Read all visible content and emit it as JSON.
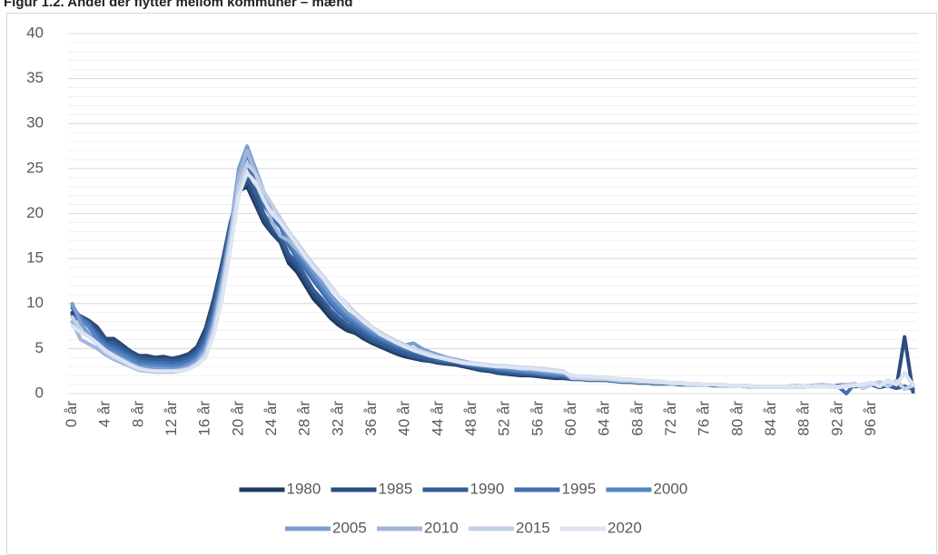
{
  "chart_data": {
    "type": "line",
    "title": "Figur 1.2. Andel der flytter mellom kommuner – mænd",
    "categories": [
      "0 år",
      null,
      null,
      null,
      "4 år",
      null,
      null,
      null,
      "8 år",
      null,
      null,
      null,
      "12 år",
      null,
      null,
      null,
      "16 år",
      null,
      null,
      null,
      "20 år",
      null,
      null,
      null,
      "24 år",
      null,
      null,
      null,
      "28 år",
      null,
      null,
      null,
      "32 år",
      null,
      null,
      null,
      "36 år",
      null,
      null,
      null,
      "40 år",
      null,
      null,
      null,
      "44 år",
      null,
      null,
      null,
      "48 år",
      null,
      null,
      null,
      "52 år",
      null,
      null,
      null,
      "56 år",
      null,
      null,
      null,
      "60 år",
      null,
      null,
      null,
      "64 år",
      null,
      null,
      null,
      "68 år",
      null,
      null,
      null,
      "72 år",
      null,
      null,
      null,
      "76 år",
      null,
      null,
      null,
      "80 år",
      null,
      null,
      null,
      "84 år",
      null,
      null,
      null,
      "88 år",
      null,
      null,
      null,
      "92 år",
      null,
      null,
      null,
      "96 år",
      null,
      null,
      null,
      null,
      null
    ],
    "ylim": [
      0,
      40
    ],
    "yticks": [
      0,
      5,
      10,
      15,
      20,
      25,
      30,
      35,
      40
    ],
    "grid": true,
    "minor_grid_step": 1,
    "legend": "bottom",
    "series": [
      {
        "name": "1980",
        "color": "#1f3a5f",
        "values": [
          9,
          8.6,
          8.1,
          7.4,
          6.1,
          6.1,
          5.4,
          4.7,
          4.2,
          4.2,
          4,
          4.1,
          3.9,
          4.1,
          4.4,
          5.2,
          7.2,
          10.5,
          14.5,
          19,
          22.5,
          23,
          21,
          19,
          17.8,
          16.8,
          14.5,
          13.5,
          12,
          10.5,
          9.5,
          8.4,
          7.6,
          7,
          6.7,
          6.1,
          5.6,
          5.2,
          4.8,
          4.4,
          4.1,
          3.9,
          3.7,
          3.6,
          3.4,
          3.3,
          3.2,
          3,
          2.8,
          2.6,
          2.5,
          2.3,
          2.2,
          2.1,
          2,
          2,
          1.9,
          1.8,
          1.7,
          1.7,
          1.6,
          1.6,
          1.5,
          1.5,
          1.5,
          1.4,
          1.3,
          1.3,
          1.2,
          1.2,
          1.1,
          1.1,
          1.1,
          1,
          1,
          1,
          1,
          0.9,
          0.9,
          0.9,
          0.9,
          0.8,
          0.8,
          0.8,
          0.8,
          0.8,
          0.8,
          0.8,
          0.8,
          0.9,
          0.9,
          0.8,
          0.9,
          1,
          0.8,
          0.9,
          1,
          0.7,
          0.9,
          0.6,
          0.8,
          0.5
        ]
      },
      {
        "name": "1985",
        "color": "#2b4c7e",
        "values": [
          8.8,
          8.5,
          8,
          7.3,
          6,
          6,
          5.3,
          4.7,
          4.2,
          4.1,
          3.9,
          4,
          3.9,
          4,
          4.3,
          5,
          7,
          10.2,
          14.2,
          18.8,
          22.3,
          23.5,
          21.5,
          19.3,
          18,
          17,
          15,
          14,
          12.5,
          11,
          10,
          8.8,
          8,
          7.3,
          6.9,
          6.3,
          5.8,
          5.4,
          5,
          4.6,
          4.3,
          4,
          3.8,
          3.7,
          3.5,
          3.4,
          3.3,
          3.1,
          2.9,
          2.7,
          2.6,
          2.4,
          2.3,
          2.2,
          2.1,
          2.1,
          2,
          1.9,
          1.8,
          1.8,
          1.6,
          1.6,
          1.5,
          1.5,
          1.5,
          1.4,
          1.3,
          1.3,
          1.2,
          1.2,
          1.1,
          1.1,
          1.1,
          1,
          1,
          1,
          1,
          0.9,
          0.9,
          0.9,
          0.9,
          0.8,
          0.8,
          0.8,
          0.8,
          0.8,
          0.8,
          0.8,
          0.8,
          0.9,
          0.9,
          0.8,
          0.9,
          1,
          0.8,
          0.9,
          1,
          0.7,
          0.9,
          0.6,
          6.3,
          0.2
        ]
      },
      {
        "name": "1990",
        "color": "#355d95",
        "values": [
          8.5,
          8.2,
          7.6,
          6.8,
          5.7,
          5.6,
          5,
          4.4,
          3.9,
          3.8,
          3.7,
          3.7,
          3.6,
          3.7,
          4,
          4.7,
          6.5,
          9.8,
          14,
          18.5,
          22.5,
          24,
          22.5,
          20,
          18.5,
          17.5,
          15.5,
          14.5,
          13,
          11.5,
          10.5,
          9.3,
          8.4,
          7.7,
          7.2,
          6.6,
          6,
          5.6,
          5.2,
          4.8,
          4.5,
          4.2,
          4,
          3.8,
          3.6,
          3.5,
          3.4,
          3.2,
          3,
          2.8,
          2.7,
          2.5,
          2.4,
          2.3,
          2.2,
          2.2,
          2.1,
          2,
          1.9,
          1.9,
          1.6,
          1.6,
          1.5,
          1.5,
          1.5,
          1.4,
          1.3,
          1.3,
          1.2,
          1.2,
          1.1,
          1.1,
          1.1,
          1,
          1,
          1,
          1,
          0.9,
          0.9,
          0.9,
          0.9,
          0.8,
          0.8,
          0.8,
          0.8,
          0.8,
          0.8,
          0.8,
          0.8,
          0.9,
          0.9,
          0.8,
          0.9,
          1,
          0.8,
          0.9,
          1,
          0.7,
          0.9,
          0.6,
          0.8,
          0.5
        ]
      },
      {
        "name": "1995",
        "color": "#426fae",
        "values": [
          9.5,
          8.5,
          7.8,
          6.5,
          5.5,
          5.2,
          4.6,
          4.1,
          3.6,
          3.5,
          3.4,
          3.4,
          3.3,
          3.4,
          3.7,
          4.3,
          5.8,
          9,
          13.5,
          18.5,
          23.5,
          25.5,
          23.5,
          21,
          19.5,
          18.5,
          16.5,
          15,
          13.8,
          12.5,
          11.3,
          10,
          9,
          8.2,
          7.6,
          7,
          6.4,
          6,
          5.6,
          5.2,
          4.9,
          4.6,
          4.3,
          4.1,
          3.8,
          3.6,
          3.5,
          3.3,
          3.1,
          3,
          2.9,
          2.7,
          2.6,
          2.5,
          2.4,
          2.3,
          2.2,
          2.1,
          2,
          2,
          1.7,
          1.7,
          1.6,
          1.6,
          1.6,
          1.5,
          1.4,
          1.4,
          1.3,
          1.3,
          1.2,
          1.2,
          1.1,
          1.1,
          1,
          1,
          1,
          1,
          0.9,
          0.9,
          0.9,
          0.8,
          0.8,
          0.8,
          0.8,
          0.8,
          0.8,
          0.9,
          0.8,
          0.9,
          1,
          0.9,
          0.8,
          0,
          1.1,
          0.6,
          1,
          1.3,
          0.8,
          1.4,
          0.5,
          0.9
        ]
      },
      {
        "name": "2000",
        "color": "#5384c4",
        "values": [
          9.8,
          8.3,
          7.4,
          6,
          5.2,
          4.8,
          4.3,
          3.8,
          3.3,
          3.2,
          3.1,
          3.1,
          3,
          3.1,
          3.4,
          4,
          5.4,
          8.5,
          13,
          18,
          24,
          26.5,
          24.5,
          22,
          20,
          19,
          17,
          15.5,
          14.3,
          13,
          11.8,
          10.5,
          9.5,
          8.6,
          8,
          7.3,
          6.7,
          6.2,
          5.8,
          5.4,
          5.1,
          4.8,
          4.5,
          4.2,
          4,
          3.8,
          3.6,
          3.4,
          3.2,
          3.1,
          3,
          2.8,
          2.7,
          2.6,
          2.5,
          2.4,
          2.3,
          2.2,
          2.1,
          2.1,
          1.7,
          1.7,
          1.6,
          1.6,
          1.6,
          1.5,
          1.4,
          1.4,
          1.3,
          1.3,
          1.2,
          1.2,
          1.1,
          1.1,
          1,
          1,
          1,
          1,
          0.9,
          0.9,
          0.9,
          0.8,
          0.8,
          0.8,
          0.8,
          0.8,
          0.8,
          0.9,
          0.8,
          0.9,
          1,
          0.9,
          0.8,
          1,
          1.1,
          0.6,
          1,
          1.3,
          0.8,
          1.4,
          0.5,
          0.9
        ]
      },
      {
        "name": "2005",
        "color": "#7c9dd0",
        "values": [
          10,
          7.8,
          6.6,
          5.5,
          4.8,
          4.4,
          3.9,
          3.4,
          3,
          2.9,
          2.8,
          2.8,
          2.7,
          2.8,
          3.1,
          3.7,
          5,
          8,
          12.5,
          18,
          25,
          27.5,
          25,
          22.5,
          20,
          19,
          17.5,
          16,
          14.8,
          13.5,
          12.3,
          11,
          10,
          9,
          8.3,
          7.6,
          7,
          6.5,
          6.1,
          5.7,
          5.4,
          5.6,
          5,
          4.6,
          4.3,
          4,
          3.8,
          3.6,
          3.4,
          3.3,
          3.1,
          3,
          2.9,
          2.8,
          2.7,
          2.6,
          2.5,
          2.4,
          2.3,
          2.2,
          2,
          1.9,
          1.9,
          1.8,
          1.8,
          1.7,
          1.6,
          1.6,
          1.5,
          1.4,
          1.4,
          1.3,
          1.2,
          1.2,
          1.1,
          1.1,
          1,
          1,
          1,
          0.9,
          0.9,
          0.9,
          0.8,
          0.8,
          0.8,
          0.8,
          0.8,
          0.8,
          0.8,
          0.8,
          0.8,
          0.8,
          0.7,
          0.8,
          0.9,
          1,
          1.2,
          0.8,
          1.5,
          1,
          2.3,
          1
        ]
      },
      {
        "name": "2010",
        "color": "#a2b6da",
        "values": [
          8,
          6,
          5.5,
          5,
          4.3,
          3.8,
          3.4,
          3,
          2.6,
          2.5,
          2.4,
          2.4,
          2.4,
          2.5,
          2.8,
          3.4,
          4.6,
          7.5,
          12,
          17.5,
          24,
          27,
          24.5,
          22,
          19,
          17.5,
          17,
          16,
          15,
          14,
          12.8,
          12,
          10.8,
          9.8,
          8.8,
          8,
          7.3,
          6.7,
          6.2,
          5.8,
          5.4,
          5,
          4.6,
          4.3,
          4,
          3.8,
          3.6,
          3.4,
          3.3,
          3.2,
          3.1,
          3,
          3,
          2.9,
          2.8,
          2.8,
          2.7,
          2.6,
          2.5,
          2.4,
          2,
          1.9,
          1.9,
          1.8,
          1.8,
          1.7,
          1.6,
          1.6,
          1.5,
          1.4,
          1.4,
          1.3,
          1.2,
          1.2,
          1.1,
          1.1,
          1,
          1,
          1,
          0.9,
          0.9,
          0.9,
          0.8,
          0.8,
          0.8,
          0.8,
          0.8,
          0.8,
          0.8,
          0.8,
          0.8,
          0.8,
          0.7,
          0.8,
          0.9,
          1,
          1.2,
          0.8,
          1.5,
          1,
          2.3,
          1
        ]
      },
      {
        "name": "2015",
        "color": "#c2cfe6",
        "values": [
          8.5,
          7,
          6.3,
          5.5,
          4.6,
          4,
          3.6,
          3.1,
          2.7,
          2.6,
          2.5,
          2.5,
          2.5,
          2.6,
          2.8,
          3.3,
          4.3,
          7,
          11.5,
          17,
          23,
          25.5,
          24.5,
          22.5,
          21,
          19.5,
          18,
          16.8,
          15.5,
          14.3,
          13.2,
          12,
          10.8,
          10,
          9,
          8.2,
          7.4,
          6.8,
          6.3,
          5.8,
          5.4,
          5,
          4.7,
          4.4,
          4.1,
          3.9,
          3.7,
          3.5,
          3.4,
          3.3,
          3.2,
          3.1,
          3.1,
          3,
          2.9,
          2.9,
          2.8,
          2.7,
          2.6,
          2.5,
          1.7,
          1.7,
          1.6,
          1.6,
          1.6,
          1.5,
          1.4,
          1.4,
          1.3,
          1.3,
          1.2,
          1.2,
          1.1,
          1.1,
          1,
          1,
          1,
          1,
          0.9,
          0.9,
          0.9,
          0.8,
          0.8,
          0.8,
          0.8,
          0.8,
          0.8,
          0.9,
          0.8,
          0.9,
          1,
          0.9,
          0.8,
          1,
          1.1,
          0.6,
          1,
          1.3,
          0.8,
          1.4,
          0.5,
          0.9
        ]
      },
      {
        "name": "2020",
        "color": "#dde4f2",
        "values": [
          7.5,
          6.8,
          6.3,
          5.6,
          4.8,
          4.2,
          3.7,
          3.2,
          2.8,
          2.6,
          2.5,
          2.5,
          2.5,
          2.5,
          2.7,
          3.2,
          4,
          6.5,
          10.5,
          16,
          22,
          24.5,
          23.5,
          21.5,
          20,
          19,
          17.8,
          16.5,
          15.2,
          14,
          13,
          11.8,
          10.8,
          9.8,
          8.8,
          8,
          7.3,
          6.6,
          6.1,
          5.6,
          5.2,
          4.8,
          4.5,
          4.2,
          4,
          3.8,
          3.6,
          3.4,
          3.3,
          3.2,
          3.1,
          3,
          3,
          2.9,
          2.8,
          2.8,
          2.7,
          2.6,
          2.5,
          2.4,
          2,
          1.9,
          1.9,
          1.8,
          1.8,
          1.7,
          1.6,
          1.6,
          1.5,
          1.4,
          1.4,
          1.3,
          1.2,
          1.2,
          1.1,
          1.1,
          1,
          1,
          1,
          0.9,
          0.9,
          0.9,
          0.8,
          0.8,
          0.8,
          0.8,
          0.8,
          0.8,
          0.8,
          0.8,
          0.8,
          0.8,
          0.7,
          0.8,
          0.9,
          1,
          1.2,
          0.8,
          1.5,
          1,
          2.3,
          1
        ]
      }
    ]
  }
}
